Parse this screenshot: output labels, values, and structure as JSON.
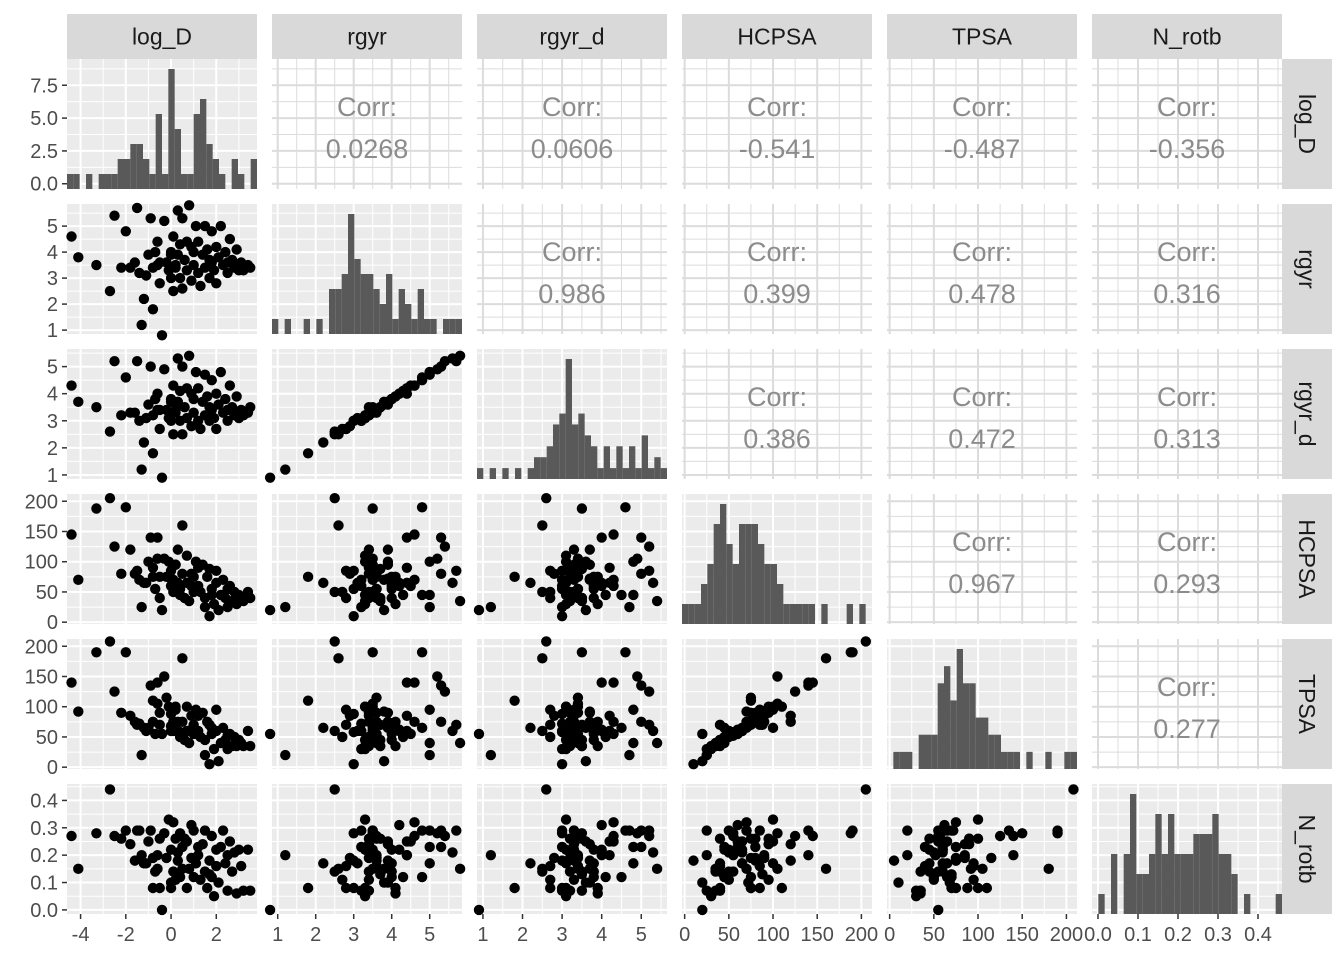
{
  "chart_data": {
    "type": "scatterplot-matrix",
    "title": "",
    "variables": [
      "log_D",
      "rgyr",
      "rgyr_d",
      "HCPSA",
      "TPSA",
      "N_rotb"
    ],
    "corr_label": "Corr:",
    "correlations": [
      {
        "row": "log_D",
        "col": "rgyr",
        "value": "0.0268"
      },
      {
        "row": "log_D",
        "col": "rgyr_d",
        "value": "0.0606"
      },
      {
        "row": "log_D",
        "col": "HCPSA",
        "value": "-0.541"
      },
      {
        "row": "log_D",
        "col": "TPSA",
        "value": "-0.487"
      },
      {
        "row": "log_D",
        "col": "N_rotb",
        "value": "-0.356"
      },
      {
        "row": "rgyr",
        "col": "rgyr_d",
        "value": "0.986"
      },
      {
        "row": "rgyr",
        "col": "HCPSA",
        "value": "0.399"
      },
      {
        "row": "rgyr",
        "col": "TPSA",
        "value": "0.478"
      },
      {
        "row": "rgyr",
        "col": "N_rotb",
        "value": "0.316"
      },
      {
        "row": "rgyr_d",
        "col": "HCPSA",
        "value": "0.386"
      },
      {
        "row": "rgyr_d",
        "col": "TPSA",
        "value": "0.472"
      },
      {
        "row": "rgyr_d",
        "col": "N_rotb",
        "value": "0.313"
      },
      {
        "row": "HCPSA",
        "col": "TPSA",
        "value": "0.967"
      },
      {
        "row": "HCPSA",
        "col": "N_rotb",
        "value": "0.293"
      },
      {
        "row": "TPSA",
        "col": "N_rotb",
        "value": "0.277"
      }
    ],
    "axes": {
      "log_D": {
        "range": [
          -4.6,
          3.8
        ],
        "x_ticks": [
          -4,
          -2,
          0,
          2
        ],
        "y_ticks": [
          0.0,
          2.5,
          5.0,
          7.5
        ],
        "y_range": [
          -0.4,
          9.5
        ],
        "y_tick_labels": [
          "0.0",
          "2.5",
          "5.0",
          "7.5"
        ]
      },
      "rgyr": {
        "range": [
          0.85,
          5.85
        ],
        "x_ticks": [
          1,
          2,
          3,
          4,
          5
        ],
        "y_ticks": [
          1,
          2,
          3,
          4,
          5
        ]
      },
      "rgyr_d": {
        "range": [
          0.85,
          5.65
        ],
        "x_ticks": [
          1,
          2,
          3,
          4,
          5
        ],
        "y_ticks": [
          1,
          2,
          3,
          4,
          5
        ]
      },
      "HCPSA": {
        "range": [
          -3,
          212
        ],
        "x_ticks": [
          0,
          50,
          100,
          150,
          200
        ],
        "y_ticks": [
          0,
          50,
          100,
          150,
          200
        ]
      },
      "TPSA": {
        "range": [
          -3,
          212
        ],
        "x_ticks": [
          0,
          50,
          100,
          150,
          200
        ],
        "y_ticks": [
          0,
          50,
          100,
          150,
          200
        ]
      },
      "N_rotb": {
        "range": [
          -0.015,
          0.46
        ],
        "x_ticks": [
          0.0,
          0.1,
          0.2,
          0.3,
          0.4
        ],
        "y_ticks": [
          0.0,
          0.1,
          0.2,
          0.3,
          0.4
        ],
        "x_tick_labels": [
          "0.0",
          "0.1",
          "0.2",
          "0.3",
          "0.4"
        ],
        "y_tick_labels": [
          "0.0",
          "0.1",
          "0.2",
          "0.3",
          "0.4"
        ]
      }
    },
    "histograms": {
      "log_D": {
        "bins": 30,
        "counts": [
          1,
          1,
          0,
          1,
          0,
          1,
          1,
          1,
          2,
          2,
          3,
          3,
          2,
          1,
          5,
          1,
          8,
          4,
          1,
          1,
          5,
          6,
          3,
          2,
          1,
          0,
          2,
          1,
          0,
          2
        ]
      },
      "rgyr": {
        "bins": 30,
        "counts": [
          1,
          0,
          1,
          0,
          0,
          1,
          0,
          1,
          0,
          3,
          3,
          4,
          8,
          5,
          4,
          4,
          3,
          2,
          4,
          1,
          3,
          2,
          1,
          3,
          1,
          1,
          0,
          1,
          1,
          1
        ]
      },
      "rgyr_d": {
        "bins": 30,
        "counts": [
          1,
          0,
          1,
          0,
          1,
          0,
          1,
          0,
          1,
          2,
          2,
          3,
          5,
          6,
          11,
          5,
          6,
          4,
          3,
          1,
          3,
          1,
          3,
          1,
          3,
          1,
          4,
          1,
          2,
          1
        ]
      },
      "HCPSA": {
        "bins": 30,
        "counts": [
          1,
          1,
          1,
          2,
          3,
          5,
          6,
          4,
          3,
          5,
          5,
          5,
          4,
          3,
          3,
          2,
          1,
          1,
          1,
          1,
          1,
          0,
          1,
          0,
          0,
          0,
          1,
          0,
          1,
          0
        ]
      },
      "TPSA": {
        "bins": 30,
        "counts": [
          0,
          1,
          1,
          1,
          0,
          2,
          2,
          2,
          5,
          6,
          4,
          7,
          5,
          5,
          3,
          3,
          2,
          2,
          1,
          1,
          1,
          0,
          1,
          0,
          0,
          1,
          0,
          0,
          1,
          1
        ]
      },
      "N_rotb": {
        "bins": 30,
        "counts": [
          0,
          1,
          0,
          3,
          0,
          3,
          6,
          2,
          2,
          3,
          5,
          3,
          5,
          3,
          3,
          3,
          4,
          4,
          4,
          5,
          3,
          3,
          2,
          0,
          1,
          0,
          0,
          0,
          0,
          1
        ]
      }
    },
    "points": [
      {
        "log_D": -4.4,
        "rgyr": 4.6,
        "rgyr_d": 4.3,
        "HCPSA": 145,
        "TPSA": 140,
        "N_rotb": 0.27
      },
      {
        "log_D": -4.1,
        "rgyr": 3.8,
        "rgyr_d": 3.7,
        "HCPSA": 70,
        "TPSA": 92,
        "N_rotb": 0.15
      },
      {
        "log_D": -3.3,
        "rgyr": 3.5,
        "rgyr_d": 3.5,
        "HCPSA": 188,
        "TPSA": 190,
        "N_rotb": 0.28
      },
      {
        "log_D": -2.7,
        "rgyr": 2.5,
        "rgyr_d": 2.6,
        "HCPSA": 205,
        "TPSA": 208,
        "N_rotb": 0.44
      },
      {
        "log_D": -2.5,
        "rgyr": 5.4,
        "rgyr_d": 5.2,
        "HCPSA": 125,
        "TPSA": 125,
        "N_rotb": 0.27
      },
      {
        "log_D": -2.2,
        "rgyr": 3.4,
        "rgyr_d": 3.2,
        "HCPSA": 80,
        "TPSA": 90,
        "N_rotb": 0.26
      },
      {
        "log_D": -2.0,
        "rgyr": 4.8,
        "rgyr_d": 4.6,
        "HCPSA": 190,
        "TPSA": 190,
        "N_rotb": 0.29
      },
      {
        "log_D": -1.8,
        "rgyr": 3.4,
        "rgyr_d": 3.3,
        "HCPSA": 120,
        "TPSA": 85,
        "N_rotb": 0.24
      },
      {
        "log_D": -1.6,
        "rgyr": 3.6,
        "rgyr_d": 3.3,
        "HCPSA": 80,
        "TPSA": 75,
        "N_rotb": 0.18
      },
      {
        "log_D": -1.5,
        "rgyr": 5.7,
        "rgyr_d": 5.2,
        "HCPSA": 85,
        "TPSA": 70,
        "N_rotb": 0.29
      },
      {
        "log_D": -1.3,
        "rgyr": 1.2,
        "rgyr_d": 1.2,
        "HCPSA": 25,
        "TPSA": 20,
        "N_rotb": 0.2
      },
      {
        "log_D": -1.2,
        "rgyr": 2.2,
        "rgyr_d": 2.2,
        "HCPSA": 65,
        "TPSA": 65,
        "N_rotb": 0.17
      },
      {
        "log_D": -1.1,
        "rgyr": 3.1,
        "rgyr_d": 3.1,
        "HCPSA": 65,
        "TPSA": 60,
        "N_rotb": 0.17
      },
      {
        "log_D": -1.0,
        "rgyr": 3.9,
        "rgyr_d": 3.6,
        "HCPSA": 100,
        "TPSA": 65,
        "N_rotb": 0.25
      },
      {
        "log_D": -0.9,
        "rgyr": 5.3,
        "rgyr_d": 5.0,
        "HCPSA": 140,
        "TPSA": 135,
        "N_rotb": 0.29
      },
      {
        "log_D": -0.8,
        "rgyr": 1.8,
        "rgyr_d": 1.8,
        "HCPSA": 75,
        "TPSA": 110,
        "N_rotb": 0.08
      },
      {
        "log_D": -0.8,
        "rgyr": 3.4,
        "rgyr_d": 3.2,
        "HCPSA": 90,
        "TPSA": 75,
        "N_rotb": 0.19
      },
      {
        "log_D": -0.7,
        "rgyr": 4.0,
        "rgyr_d": 3.8,
        "HCPSA": 55,
        "TPSA": 55,
        "N_rotb": 0.14
      },
      {
        "log_D": -0.6,
        "rgyr": 4.4,
        "rgyr_d": 4.0,
        "HCPSA": 140,
        "TPSA": 140,
        "N_rotb": 0.2
      },
      {
        "log_D": -0.5,
        "rgyr": 2.8,
        "rgyr_d": 2.7,
        "HCPSA": 40,
        "TPSA": 70,
        "N_rotb": 0.08
      },
      {
        "log_D": -0.5,
        "rgyr": 3.6,
        "rgyr_d": 3.4,
        "HCPSA": 75,
        "TPSA": 90,
        "N_rotb": 0.26
      },
      {
        "log_D": -0.4,
        "rgyr": 0.8,
        "rgyr_d": 0.9,
        "HCPSA": 20,
        "TPSA": 55,
        "N_rotb": 0.0
      },
      {
        "log_D": -0.3,
        "rgyr": 5.2,
        "rgyr_d": 4.9,
        "HCPSA": 105,
        "TPSA": 150,
        "N_rotb": 0.28
      },
      {
        "log_D": -0.2,
        "rgyr": 3.6,
        "rgyr_d": 3.4,
        "HCPSA": 75,
        "TPSA": 115,
        "N_rotb": 0.19
      },
      {
        "log_D": -0.1,
        "rgyr": 3.3,
        "rgyr_d": 3.1,
        "HCPSA": 100,
        "TPSA": 100,
        "N_rotb": 0.33
      },
      {
        "log_D": 0.0,
        "rgyr": 4.0,
        "rgyr_d": 3.8,
        "HCPSA": 60,
        "TPSA": 60,
        "N_rotb": 0.22
      },
      {
        "log_D": 0.0,
        "rgyr": 3.0,
        "rgyr_d": 3.0,
        "HCPSA": 85,
        "TPSA": 88,
        "N_rotb": 0.08
      },
      {
        "log_D": 0.1,
        "rgyr": 4.6,
        "rgyr_d": 4.3,
        "HCPSA": 70,
        "TPSA": 75,
        "N_rotb": 0.32
      },
      {
        "log_D": 0.1,
        "rgyr": 2.5,
        "rgyr_d": 2.5,
        "HCPSA": 50,
        "TPSA": 60,
        "N_rotb": 0.14
      },
      {
        "log_D": 0.2,
        "rgyr": 3.5,
        "rgyr_d": 3.4,
        "HCPSA": 95,
        "TPSA": 100,
        "N_rotb": 0.26
      },
      {
        "log_D": 0.3,
        "rgyr": 5.6,
        "rgyr_d": 5.3,
        "HCPSA": 65,
        "TPSA": 60,
        "N_rotb": 0.21
      },
      {
        "log_D": 0.3,
        "rgyr": 3.9,
        "rgyr_d": 3.7,
        "HCPSA": 120,
        "TPSA": 75,
        "N_rotb": 0.18
      },
      {
        "log_D": 0.4,
        "rgyr": 4.3,
        "rgyr_d": 4.1,
        "HCPSA": 45,
        "TPSA": 50,
        "N_rotb": 0.12
      },
      {
        "log_D": 0.4,
        "rgyr": 3.0,
        "rgyr_d": 3.0,
        "HCPSA": 55,
        "TPSA": 58,
        "N_rotb": 0.28
      },
      {
        "log_D": 0.5,
        "rgyr": 2.6,
        "rgyr_d": 2.5,
        "HCPSA": 160,
        "TPSA": 180,
        "N_rotb": 0.15
      },
      {
        "log_D": 0.5,
        "rgyr": 5.3,
        "rgyr_d": 5.0,
        "HCPSA": 80,
        "TPSA": 75,
        "N_rotb": 0.23
      },
      {
        "log_D": 0.6,
        "rgyr": 3.7,
        "rgyr_d": 3.5,
        "HCPSA": 40,
        "TPSA": 45,
        "N_rotb": 0.26
      },
      {
        "log_D": 0.7,
        "rgyr": 3.3,
        "rgyr_d": 3.1,
        "HCPSA": 110,
        "TPSA": 100,
        "N_rotb": 0.08
      },
      {
        "log_D": 0.7,
        "rgyr": 4.4,
        "rgyr_d": 4.2,
        "HCPSA": 65,
        "TPSA": 60,
        "N_rotb": 0.25
      },
      {
        "log_D": 0.8,
        "rgyr": 5.8,
        "rgyr_d": 5.4,
        "HCPSA": 35,
        "TPSA": 40,
        "N_rotb": 0.15
      },
      {
        "log_D": 0.9,
        "rgyr": 2.9,
        "rgyr_d": 2.8,
        "HCPSA": 80,
        "TPSA": 85,
        "N_rotb": 0.19
      },
      {
        "log_D": 1.0,
        "rgyr": 4.0,
        "rgyr_d": 3.8,
        "HCPSA": 75,
        "TPSA": 70,
        "N_rotb": 0.12
      },
      {
        "log_D": 1.0,
        "rgyr": 3.5,
        "rgyr_d": 3.3,
        "HCPSA": 50,
        "TPSA": 55,
        "N_rotb": 0.29
      },
      {
        "log_D": 1.1,
        "rgyr": 5.0,
        "rgyr_d": 4.8,
        "HCPSA": 100,
        "TPSA": 95,
        "N_rotb": 0.17
      },
      {
        "log_D": 1.2,
        "rgyr": 3.2,
        "rgyr_d": 3.0,
        "HCPSA": 60,
        "TPSA": 60,
        "N_rotb": 0.23
      },
      {
        "log_D": 1.2,
        "rgyr": 4.4,
        "rgyr_d": 4.2,
        "HCPSA": 90,
        "TPSA": 85,
        "N_rotb": 0.2
      },
      {
        "log_D": 1.3,
        "rgyr": 2.7,
        "rgyr_d": 2.7,
        "HCPSA": 50,
        "TPSA": 50,
        "N_rotb": 0.11
      },
      {
        "log_D": 1.4,
        "rgyr": 3.9,
        "rgyr_d": 3.7,
        "HCPSA": 95,
        "TPSA": 90,
        "N_rotb": 0.24
      },
      {
        "log_D": 1.5,
        "rgyr": 5.0,
        "rgyr_d": 4.7,
        "HCPSA": 25,
        "TPSA": 20,
        "N_rotb": 0.29
      },
      {
        "log_D": 1.5,
        "rgyr": 3.4,
        "rgyr_d": 3.2,
        "HCPSA": 40,
        "TPSA": 45,
        "N_rotb": 0.14
      },
      {
        "log_D": 1.6,
        "rgyr": 4.1,
        "rgyr_d": 3.9,
        "HCPSA": 75,
        "TPSA": 75,
        "N_rotb": 0.08
      },
      {
        "log_D": 1.7,
        "rgyr": 3.0,
        "rgyr_d": 3.0,
        "HCPSA": 10,
        "TPSA": 5,
        "N_rotb": 0.18
      },
      {
        "log_D": 1.8,
        "rgyr": 3.6,
        "rgyr_d": 3.4,
        "HCPSA": 55,
        "TPSA": 55,
        "N_rotb": 0.27
      },
      {
        "log_D": 1.8,
        "rgyr": 4.8,
        "rgyr_d": 4.5,
        "HCPSA": 45,
        "TPSA": 65,
        "N_rotb": 0.12
      },
      {
        "log_D": 1.9,
        "rgyr": 3.3,
        "rgyr_d": 3.1,
        "HCPSA": 30,
        "TPSA": 30,
        "N_rotb": 0.05
      },
      {
        "log_D": 2.0,
        "rgyr": 4.2,
        "rgyr_d": 4.0,
        "HCPSA": 65,
        "TPSA": 60,
        "N_rotb": 0.22
      },
      {
        "log_D": 2.0,
        "rgyr": 2.8,
        "rgyr_d": 2.7,
        "HCPSA": 85,
        "TPSA": 95,
        "N_rotb": 0.16
      },
      {
        "log_D": 2.1,
        "rgyr": 3.8,
        "rgyr_d": 3.6,
        "HCPSA": 20,
        "TPSA": 10,
        "N_rotb": 0.1
      },
      {
        "log_D": 2.2,
        "rgyr": 5.0,
        "rgyr_d": 4.8,
        "HCPSA": 45,
        "TPSA": 40,
        "N_rotb": 0.23
      },
      {
        "log_D": 2.3,
        "rgyr": 3.5,
        "rgyr_d": 3.3,
        "HCPSA": 70,
        "TPSA": 65,
        "N_rotb": 0.29
      },
      {
        "log_D": 2.4,
        "rgyr": 4.0,
        "rgyr_d": 3.8,
        "HCPSA": 40,
        "TPSA": 45,
        "N_rotb": 0.17
      },
      {
        "log_D": 2.5,
        "rgyr": 3.2,
        "rgyr_d": 3.0,
        "HCPSA": 25,
        "TPSA": 30,
        "N_rotb": 0.07
      },
      {
        "log_D": 2.6,
        "rgyr": 4.5,
        "rgyr_d": 4.3,
        "HCPSA": 60,
        "TPSA": 55,
        "N_rotb": 0.25
      },
      {
        "log_D": 2.7,
        "rgyr": 3.7,
        "rgyr_d": 3.5,
        "HCPSA": 35,
        "TPSA": 35,
        "N_rotb": 0.14
      },
      {
        "log_D": 2.8,
        "rgyr": 3.4,
        "rgyr_d": 3.2,
        "HCPSA": 50,
        "TPSA": 50,
        "N_rotb": 0.21
      },
      {
        "log_D": 2.9,
        "rgyr": 4.1,
        "rgyr_d": 3.9,
        "HCPSA": 30,
        "TPSA": 35,
        "N_rotb": 0.06
      },
      {
        "log_D": 3.0,
        "rgyr": 3.3,
        "rgyr_d": 3.1,
        "HCPSA": 45,
        "TPSA": 45,
        "N_rotb": 0.22
      },
      {
        "log_D": 3.1,
        "rgyr": 3.6,
        "rgyr_d": 3.4,
        "HCPSA": 40,
        "TPSA": 40,
        "N_rotb": 0.16
      },
      {
        "log_D": 3.2,
        "rgyr": 3.3,
        "rgyr_d": 3.2,
        "HCPSA": 35,
        "TPSA": 35,
        "N_rotb": 0.07
      },
      {
        "log_D": 3.4,
        "rgyr": 3.5,
        "rgyr_d": 3.3,
        "HCPSA": 50,
        "TPSA": 60,
        "N_rotb": 0.22
      },
      {
        "log_D": 3.5,
        "rgyr": 3.4,
        "rgyr_d": 3.5,
        "HCPSA": 40,
        "TPSA": 35,
        "N_rotb": 0.07
      },
      {
        "log_D": 0.2,
        "rgyr": 3.4,
        "rgyr_d": 3.3,
        "HCPSA": 95,
        "TPSA": 95,
        "N_rotb": 0.11
      },
      {
        "log_D": -0.6,
        "rgyr": 3.5,
        "rgyr_d": 3.4,
        "HCPSA": 105,
        "TPSA": 105,
        "N_rotb": 0.15
      },
      {
        "log_D": 1.7,
        "rgyr": 3.7,
        "rgyr_d": 3.5,
        "HCPSA": 88,
        "TPSA": 70,
        "N_rotb": 0.13
      },
      {
        "log_D": 0.9,
        "rgyr": 4.2,
        "rgyr_d": 4.0,
        "HCPSA": 60,
        "TPSA": 62,
        "N_rotb": 0.31
      },
      {
        "log_D": -1.4,
        "rgyr": 3.2,
        "rgyr_d": 3.0,
        "HCPSA": 70,
        "TPSA": 72,
        "N_rotb": 0.29
      },
      {
        "log_D": 0.0,
        "rgyr": 3.9,
        "rgyr_d": 3.7,
        "HCPSA": 72,
        "TPSA": 68,
        "N_rotb": 0.1
      },
      {
        "log_D": 2.5,
        "rgyr": 3.6,
        "rgyr_d": 3.4,
        "HCPSA": 55,
        "TPSA": 52,
        "N_rotb": 0.2
      }
    ]
  }
}
